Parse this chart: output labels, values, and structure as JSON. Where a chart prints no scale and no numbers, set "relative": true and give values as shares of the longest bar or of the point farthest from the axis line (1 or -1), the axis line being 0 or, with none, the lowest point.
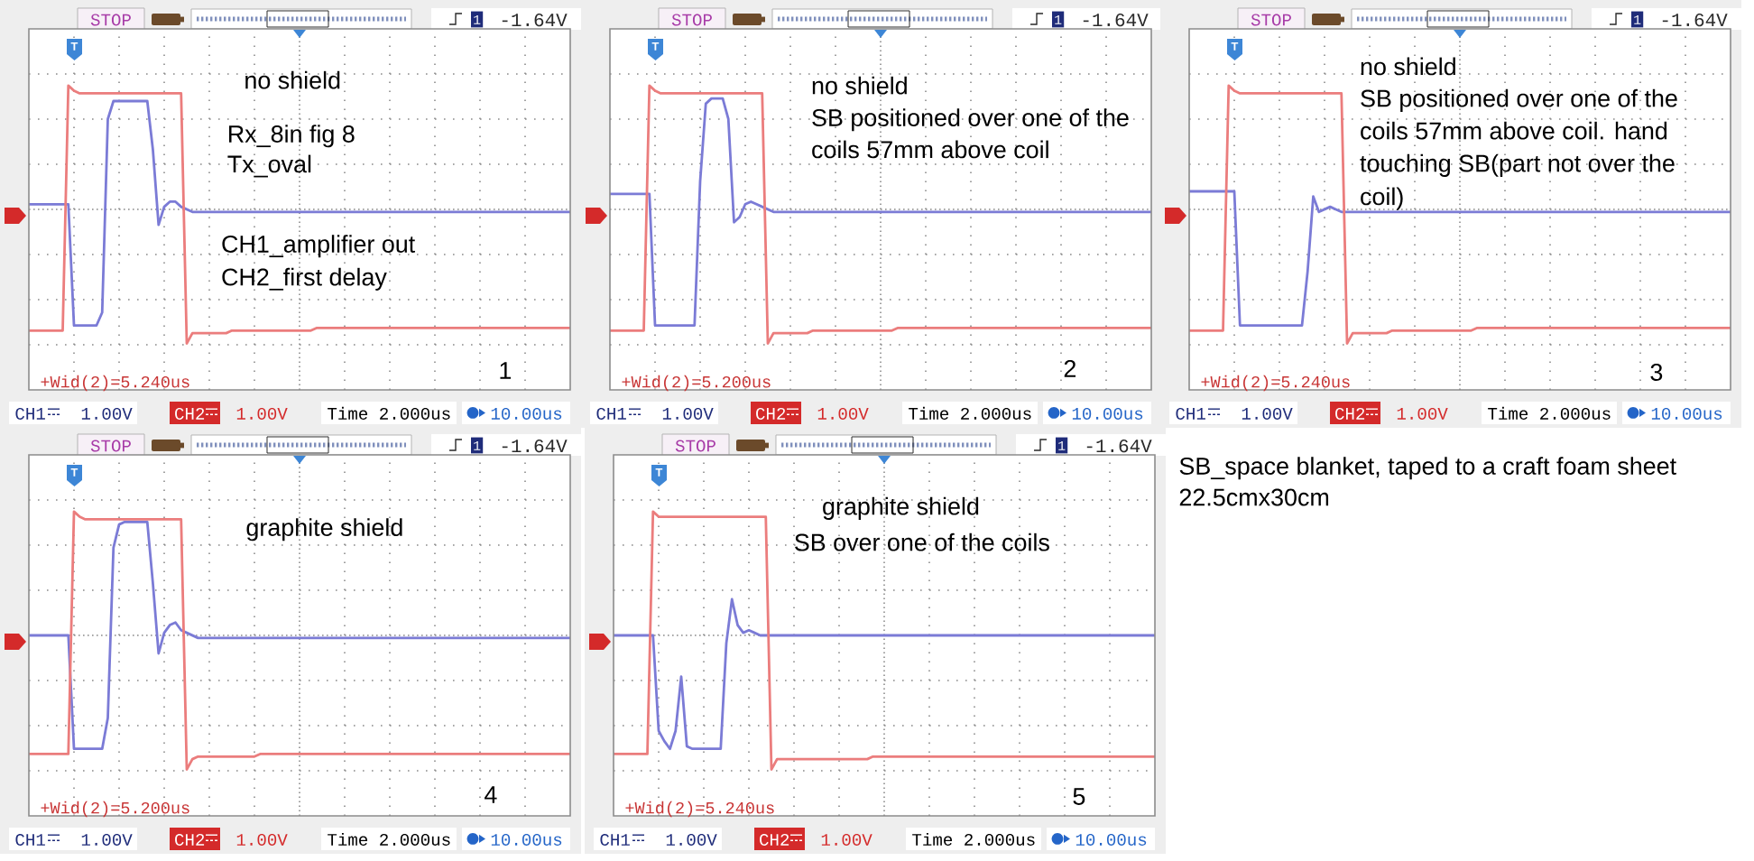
{
  "chart_data": [
    {
      "type": "line",
      "relative": true,
      "grid": true,
      "categories": [
        null,
        null,
        null,
        null,
        null,
        null,
        null,
        null,
        null,
        null,
        null,
        null,
        null,
        null,
        null,
        null,
        null,
        null,
        null,
        null,
        null,
        null,
        null,
        null,
        null,
        null,
        null,
        null,
        null,
        null,
        null,
        null,
        null,
        null,
        null,
        null,
        null,
        null,
        null,
        null,
        null,
        null,
        null,
        null,
        null,
        null,
        null,
        null,
        null,
        null,
        null,
        null,
        null,
        null,
        null,
        null,
        null,
        null,
        null,
        null,
        null,
        null,
        null,
        null,
        null,
        null,
        null,
        null,
        null,
        null,
        null,
        null,
        null,
        null,
        null,
        null,
        null,
        null,
        null,
        null,
        null,
        null,
        null,
        null,
        null,
        null,
        null,
        null,
        null,
        null,
        null,
        null,
        null,
        null,
        null,
        null,
        null
      ],
      "series": [
        {
          "color": "#7b7bd6",
          "values": [
            0.54,
            0.54,
            0.54,
            0.54,
            0.54,
            0.54,
            0.54,
            0.54,
            0.07,
            0.07,
            0.07,
            0.07,
            0.07,
            0.12,
            0.87,
            0.94,
            0.94,
            0.94,
            0.94,
            0.94,
            0.94,
            0.94,
            0.75,
            0.46,
            0.53,
            0.55,
            0.55,
            0.53,
            0.52,
            0.51,
            0.51,
            0.51,
            0.51,
            0.51,
            0.51,
            0.51,
            0.51,
            0.51,
            0.51,
            0.51,
            0.51,
            0.51,
            0.51,
            0.51,
            0.51,
            0.51,
            0.51,
            0.51,
            0.51,
            0.51,
            0.51,
            0.51,
            0.51,
            0.51,
            0.51,
            0.51,
            0.51,
            0.51,
            0.51,
            0.51,
            0.51,
            0.51,
            0.51,
            0.51,
            0.51,
            0.51,
            0.51,
            0.51,
            0.51,
            0.51,
            0.51,
            0.51,
            0.51,
            0.51,
            0.51,
            0.51,
            0.51,
            0.51,
            0.51,
            0.51,
            0.51,
            0.51,
            0.51,
            0.51,
            0.51,
            0.51,
            0.51,
            0.51,
            0.51,
            0.51,
            0.51,
            0.51,
            0.51,
            0.51,
            0.51,
            0.51,
            0.51
          ]
        },
        {
          "color": "#eb7d7d",
          "values": [
            0.05,
            0.05,
            0.05,
            0.05,
            0.05,
            0.05,
            0.05,
            1.0,
            0.98,
            0.97,
            0.97,
            0.97,
            0.97,
            0.97,
            0.97,
            0.97,
            0.97,
            0.97,
            0.97,
            0.97,
            0.97,
            0.97,
            0.97,
            0.97,
            0.97,
            0.97,
            0.97,
            0.97,
            0.0,
            0.04,
            0.04,
            0.04,
            0.04,
            0.04,
            0.04,
            0.04,
            0.05,
            0.05,
            0.05,
            0.05,
            0.05,
            0.05,
            0.05,
            0.05,
            0.05,
            0.05,
            0.05,
            0.05,
            0.05,
            0.05,
            0.05,
            0.06,
            0.06,
            0.06,
            0.06,
            0.06,
            0.06,
            0.06,
            0.06,
            0.06,
            0.06,
            0.06,
            0.06,
            0.06,
            0.06,
            0.06,
            0.06,
            0.06,
            0.06,
            0.06,
            0.06,
            0.06,
            0.06,
            0.06,
            0.06,
            0.06,
            0.06,
            0.06,
            0.06,
            0.06,
            0.06,
            0.06,
            0.06,
            0.06,
            0.06,
            0.06,
            0.06,
            0.06,
            0.06,
            0.06,
            0.06,
            0.06,
            0.06,
            0.06,
            0.06,
            0.06,
            0.06
          ]
        }
      ],
      "annotations": [
        "STOP",
        "1",
        "-1.64V",
        "T",
        "+Wid(2)=5.240us",
        "CH1",
        "1.00V",
        "CH2",
        "1.00V",
        "Time 2.000us",
        "10.00us",
        "1",
        "no shield",
        "Rx_8in fig 8",
        "Tx_oval",
        "CH1_amplifier out",
        "CH2_first delay"
      ]
    },
    {
      "type": "line",
      "relative": true,
      "grid": true,
      "categories": [
        null,
        null,
        null,
        null,
        null,
        null,
        null,
        null,
        null,
        null,
        null,
        null,
        null,
        null,
        null,
        null,
        null,
        null,
        null,
        null,
        null,
        null,
        null,
        null,
        null,
        null,
        null,
        null,
        null,
        null,
        null,
        null,
        null,
        null,
        null,
        null,
        null,
        null,
        null,
        null,
        null,
        null,
        null,
        null,
        null,
        null,
        null,
        null,
        null,
        null,
        null,
        null,
        null,
        null,
        null,
        null,
        null,
        null,
        null,
        null,
        null,
        null,
        null,
        null,
        null,
        null,
        null,
        null,
        null,
        null,
        null,
        null,
        null,
        null,
        null,
        null,
        null,
        null,
        null,
        null,
        null,
        null,
        null,
        null,
        null,
        null,
        null,
        null,
        null,
        null,
        null,
        null,
        null,
        null,
        null,
        null,
        null
      ],
      "series": [
        {
          "color": "#7b7bd6",
          "values": [
            0.58,
            0.58,
            0.58,
            0.58,
            0.58,
            0.58,
            0.58,
            0.58,
            0.07,
            0.07,
            0.07,
            0.07,
            0.07,
            0.07,
            0.07,
            0.07,
            0.63,
            0.93,
            0.95,
            0.95,
            0.95,
            0.87,
            0.47,
            0.49,
            0.54,
            0.55,
            0.54,
            0.53,
            0.52,
            0.51,
            0.51,
            0.51,
            0.51,
            0.51,
            0.51,
            0.51,
            0.51,
            0.51,
            0.51,
            0.51,
            0.51,
            0.51,
            0.51,
            0.51,
            0.51,
            0.51,
            0.51,
            0.51,
            0.51,
            0.51,
            0.51,
            0.51,
            0.51,
            0.51,
            0.51,
            0.51,
            0.51,
            0.51,
            0.51,
            0.51,
            0.51,
            0.51,
            0.51,
            0.51,
            0.51,
            0.51,
            0.51,
            0.51,
            0.51,
            0.51,
            0.51,
            0.51,
            0.51,
            0.51,
            0.51,
            0.51,
            0.51,
            0.51,
            0.51,
            0.51,
            0.51,
            0.51,
            0.51,
            0.51,
            0.51,
            0.51,
            0.51,
            0.51,
            0.51,
            0.51,
            0.51,
            0.51,
            0.51,
            0.51,
            0.51,
            0.51,
            0.51
          ]
        },
        {
          "color": "#eb7d7d",
          "values": [
            0.05,
            0.05,
            0.05,
            0.05,
            0.05,
            0.05,
            0.05,
            1.0,
            0.98,
            0.97,
            0.97,
            0.97,
            0.97,
            0.97,
            0.97,
            0.97,
            0.97,
            0.97,
            0.97,
            0.97,
            0.97,
            0.97,
            0.97,
            0.97,
            0.97,
            0.97,
            0.97,
            0.97,
            0.0,
            0.04,
            0.04,
            0.04,
            0.04,
            0.04,
            0.04,
            0.04,
            0.05,
            0.05,
            0.05,
            0.05,
            0.05,
            0.05,
            0.05,
            0.05,
            0.05,
            0.05,
            0.05,
            0.05,
            0.05,
            0.05,
            0.05,
            0.06,
            0.06,
            0.06,
            0.06,
            0.06,
            0.06,
            0.06,
            0.06,
            0.06,
            0.06,
            0.06,
            0.06,
            0.06,
            0.06,
            0.06,
            0.06,
            0.06,
            0.06,
            0.06,
            0.06,
            0.06,
            0.06,
            0.06,
            0.06,
            0.06,
            0.06,
            0.06,
            0.06,
            0.06,
            0.06,
            0.06,
            0.06,
            0.06,
            0.06,
            0.06,
            0.06,
            0.06,
            0.06,
            0.06,
            0.06,
            0.06,
            0.06,
            0.06,
            0.06,
            0.06,
            0.06
          ]
        }
      ],
      "annotations": [
        "STOP",
        "1",
        "-1.64V",
        "T",
        "+Wid(2)=5.200us",
        "CH1",
        "1.00V",
        "CH2",
        "1.00V",
        "Time 2.000us",
        "10.00us",
        "2",
        "no shield",
        "SB positioned over one of the",
        "coils 57mm above coil"
      ]
    },
    {
      "type": "line",
      "relative": true,
      "grid": true,
      "categories": [
        null,
        null,
        null,
        null,
        null,
        null,
        null,
        null,
        null,
        null,
        null,
        null,
        null,
        null,
        null,
        null,
        null,
        null,
        null,
        null,
        null,
        null,
        null,
        null,
        null,
        null,
        null,
        null,
        null,
        null,
        null,
        null,
        null,
        null,
        null,
        null,
        null,
        null,
        null,
        null,
        null,
        null,
        null,
        null,
        null,
        null,
        null,
        null,
        null,
        null,
        null,
        null,
        null,
        null,
        null,
        null,
        null,
        null,
        null,
        null,
        null,
        null,
        null,
        null,
        null,
        null,
        null,
        null,
        null,
        null,
        null,
        null,
        null,
        null,
        null,
        null,
        null,
        null,
        null,
        null,
        null,
        null,
        null,
        null,
        null,
        null,
        null,
        null,
        null,
        null,
        null,
        null,
        null,
        null,
        null,
        null,
        null
      ],
      "series": [
        {
          "color": "#7b7bd6",
          "values": [
            0.59,
            0.59,
            0.59,
            0.59,
            0.59,
            0.59,
            0.59,
            0.59,
            0.59,
            0.07,
            0.07,
            0.07,
            0.07,
            0.07,
            0.07,
            0.07,
            0.07,
            0.07,
            0.07,
            0.07,
            0.07,
            0.28,
            0.57,
            0.51,
            0.52,
            0.53,
            0.52,
            0.51,
            0.51,
            0.51,
            0.51,
            0.51,
            0.51,
            0.51,
            0.51,
            0.51,
            0.51,
            0.51,
            0.51,
            0.51,
            0.51,
            0.51,
            0.51,
            0.51,
            0.51,
            0.51,
            0.51,
            0.51,
            0.51,
            0.51,
            0.51,
            0.51,
            0.51,
            0.51,
            0.51,
            0.51,
            0.51,
            0.51,
            0.51,
            0.51,
            0.51,
            0.51,
            0.51,
            0.51,
            0.51,
            0.51,
            0.51,
            0.51,
            0.51,
            0.51,
            0.51,
            0.51,
            0.51,
            0.51,
            0.51,
            0.51,
            0.51,
            0.51,
            0.51,
            0.51,
            0.51,
            0.51,
            0.51,
            0.51,
            0.51,
            0.51,
            0.51,
            0.51,
            0.51,
            0.51,
            0.51,
            0.51,
            0.51,
            0.51,
            0.51,
            0.51,
            0.51
          ]
        },
        {
          "color": "#eb7d7d",
          "values": [
            0.05,
            0.05,
            0.05,
            0.05,
            0.05,
            0.05,
            0.05,
            1.0,
            0.98,
            0.97,
            0.97,
            0.97,
            0.97,
            0.97,
            0.97,
            0.97,
            0.97,
            0.97,
            0.97,
            0.97,
            0.97,
            0.97,
            0.97,
            0.97,
            0.97,
            0.97,
            0.97,
            0.97,
            0.0,
            0.04,
            0.04,
            0.04,
            0.04,
            0.04,
            0.04,
            0.04,
            0.05,
            0.05,
            0.05,
            0.05,
            0.05,
            0.05,
            0.05,
            0.05,
            0.05,
            0.05,
            0.05,
            0.05,
            0.05,
            0.05,
            0.05,
            0.06,
            0.06,
            0.06,
            0.06,
            0.06,
            0.06,
            0.06,
            0.06,
            0.06,
            0.06,
            0.06,
            0.06,
            0.06,
            0.06,
            0.06,
            0.06,
            0.06,
            0.06,
            0.06,
            0.06,
            0.06,
            0.06,
            0.06,
            0.06,
            0.06,
            0.06,
            0.06,
            0.06,
            0.06,
            0.06,
            0.06,
            0.06,
            0.06,
            0.06,
            0.06,
            0.06,
            0.06,
            0.06,
            0.06,
            0.06,
            0.06,
            0.06,
            0.06,
            0.06,
            0.06,
            0.06
          ]
        }
      ],
      "annotations": [
        "STOP",
        "1",
        "-1.64V",
        "T",
        "+Wid(2)=5.240us",
        "CH1",
        "1.00V",
        "CH2",
        "1.00V",
        "Time 2.000us",
        "10.00us",
        "3",
        "no shield",
        "SB positioned over one of the",
        "coils 57mm above coil. hand",
        "touching SB(part not over the",
        "coil)"
      ]
    },
    {
      "type": "line",
      "relative": true,
      "grid": true,
      "categories": [
        null,
        null,
        null,
        null,
        null,
        null,
        null,
        null,
        null,
        null,
        null,
        null,
        null,
        null,
        null,
        null,
        null,
        null,
        null,
        null,
        null,
        null,
        null,
        null,
        null,
        null,
        null,
        null,
        null,
        null,
        null,
        null,
        null,
        null,
        null,
        null,
        null,
        null,
        null,
        null,
        null,
        null,
        null,
        null,
        null,
        null,
        null,
        null,
        null,
        null,
        null,
        null,
        null,
        null,
        null,
        null,
        null,
        null,
        null,
        null,
        null,
        null,
        null,
        null,
        null,
        null,
        null,
        null,
        null,
        null,
        null,
        null,
        null,
        null,
        null,
        null,
        null,
        null,
        null,
        null,
        null,
        null,
        null,
        null,
        null,
        null,
        null,
        null,
        null,
        null,
        null,
        null,
        null,
        null,
        null,
        null,
        null
      ],
      "series": [
        {
          "color": "#7b7bd6",
          "values": [
            0.52,
            0.52,
            0.52,
            0.52,
            0.52,
            0.52,
            0.52,
            0.52,
            0.08,
            0.08,
            0.08,
            0.08,
            0.08,
            0.08,
            0.2,
            0.86,
            0.95,
            0.96,
            0.96,
            0.96,
            0.96,
            0.96,
            0.72,
            0.45,
            0.53,
            0.56,
            0.57,
            0.54,
            0.53,
            0.52,
            0.51,
            0.51,
            0.51,
            0.51,
            0.51,
            0.51,
            0.51,
            0.51,
            0.51,
            0.51,
            0.51,
            0.51,
            0.51,
            0.51,
            0.51,
            0.51,
            0.51,
            0.51,
            0.51,
            0.51,
            0.51,
            0.51,
            0.51,
            0.51,
            0.51,
            0.51,
            0.51,
            0.51,
            0.51,
            0.51,
            0.51,
            0.51,
            0.51,
            0.51,
            0.51,
            0.51,
            0.51,
            0.51,
            0.51,
            0.51,
            0.51,
            0.51,
            0.51,
            0.51,
            0.51,
            0.51,
            0.51,
            0.51,
            0.51,
            0.51,
            0.51,
            0.51,
            0.51,
            0.51,
            0.51,
            0.51,
            0.51,
            0.51,
            0.51,
            0.51,
            0.51,
            0.51,
            0.51,
            0.51,
            0.51,
            0.51,
            0.51
          ]
        },
        {
          "color": "#eb7d7d",
          "values": [
            0.06,
            0.06,
            0.06,
            0.06,
            0.06,
            0.06,
            0.06,
            0.06,
            1.0,
            0.98,
            0.97,
            0.97,
            0.97,
            0.97,
            0.97,
            0.97,
            0.97,
            0.97,
            0.97,
            0.97,
            0.97,
            0.97,
            0.97,
            0.97,
            0.97,
            0.97,
            0.97,
            0.97,
            0.0,
            0.04,
            0.05,
            0.05,
            0.05,
            0.05,
            0.05,
            0.05,
            0.05,
            0.05,
            0.05,
            0.05,
            0.05,
            0.06,
            0.06,
            0.06,
            0.06,
            0.06,
            0.06,
            0.06,
            0.06,
            0.06,
            0.06,
            0.06,
            0.06,
            0.06,
            0.06,
            0.06,
            0.06,
            0.06,
            0.06,
            0.06,
            0.06,
            0.06,
            0.06,
            0.06,
            0.06,
            0.06,
            0.06,
            0.06,
            0.06,
            0.06,
            0.06,
            0.06,
            0.06,
            0.06,
            0.06,
            0.06,
            0.06,
            0.06,
            0.06,
            0.06,
            0.06,
            0.06,
            0.06,
            0.06,
            0.06,
            0.06,
            0.06,
            0.06,
            0.06,
            0.06,
            0.06,
            0.06,
            0.06,
            0.06,
            0.06,
            0.06,
            0.06
          ]
        }
      ],
      "annotations": [
        "STOP",
        "1",
        "-1.64V",
        "T",
        "+Wid(2)=5.200us",
        "CH1",
        "1.00V",
        "CH2",
        "1.00V",
        "Time 2.000us",
        "10.00us",
        "4",
        "graphite shield"
      ]
    },
    {
      "type": "line",
      "relative": true,
      "grid": true,
      "categories": [
        null,
        null,
        null,
        null,
        null,
        null,
        null,
        null,
        null,
        null,
        null,
        null,
        null,
        null,
        null,
        null,
        null,
        null,
        null,
        null,
        null,
        null,
        null,
        null,
        null,
        null,
        null,
        null,
        null,
        null,
        null,
        null,
        null,
        null,
        null,
        null,
        null,
        null,
        null,
        null,
        null,
        null,
        null,
        null,
        null,
        null,
        null,
        null,
        null,
        null,
        null,
        null,
        null,
        null,
        null,
        null,
        null,
        null,
        null,
        null,
        null,
        null,
        null,
        null,
        null,
        null,
        null,
        null,
        null,
        null,
        null,
        null,
        null,
        null,
        null,
        null,
        null,
        null,
        null,
        null,
        null,
        null,
        null,
        null,
        null,
        null,
        null,
        null,
        null,
        null,
        null,
        null,
        null,
        null,
        null,
        null,
        null
      ],
      "series": [
        {
          "color": "#7b7bd6",
          "values": [
            0.52,
            0.52,
            0.52,
            0.52,
            0.52,
            0.52,
            0.52,
            0.52,
            0.15,
            0.11,
            0.08,
            0.15,
            0.36,
            0.09,
            0.08,
            0.08,
            0.08,
            0.08,
            0.08,
            0.08,
            0.49,
            0.66,
            0.56,
            0.53,
            0.54,
            0.53,
            0.52,
            0.52,
            0.52,
            0.52,
            0.52,
            0.52,
            0.52,
            0.52,
            0.52,
            0.52,
            0.52,
            0.52,
            0.52,
            0.52,
            0.52,
            0.52,
            0.52,
            0.52,
            0.52,
            0.52,
            0.52,
            0.52,
            0.52,
            0.52,
            0.52,
            0.52,
            0.52,
            0.52,
            0.52,
            0.52,
            0.52,
            0.52,
            0.52,
            0.52,
            0.52,
            0.52,
            0.52,
            0.52,
            0.52,
            0.52,
            0.52,
            0.52,
            0.52,
            0.52,
            0.52,
            0.52,
            0.52,
            0.52,
            0.52,
            0.52,
            0.52,
            0.52,
            0.52,
            0.52,
            0.52,
            0.52,
            0.52,
            0.52,
            0.52,
            0.52,
            0.52,
            0.52,
            0.52,
            0.52,
            0.52,
            0.52,
            0.52,
            0.52,
            0.52,
            0.52,
            0.52
          ]
        },
        {
          "color": "#eb7d7d",
          "values": [
            0.06,
            0.06,
            0.06,
            0.06,
            0.06,
            0.06,
            0.06,
            1.0,
            0.98,
            0.98,
            0.98,
            0.98,
            0.98,
            0.98,
            0.98,
            0.98,
            0.98,
            0.98,
            0.98,
            0.98,
            0.98,
            0.98,
            0.98,
            0.98,
            0.98,
            0.98,
            0.98,
            0.98,
            0.0,
            0.04,
            0.04,
            0.04,
            0.04,
            0.04,
            0.04,
            0.04,
            0.04,
            0.04,
            0.04,
            0.04,
            0.04,
            0.04,
            0.04,
            0.04,
            0.04,
            0.04,
            0.05,
            0.05,
            0.05,
            0.05,
            0.05,
            0.05,
            0.05,
            0.05,
            0.05,
            0.05,
            0.05,
            0.05,
            0.05,
            0.05,
            0.05,
            0.05,
            0.05,
            0.05,
            0.05,
            0.05,
            0.05,
            0.05,
            0.05,
            0.05,
            0.05,
            0.05,
            0.05,
            0.05,
            0.05,
            0.05,
            0.05,
            0.05,
            0.05,
            0.05,
            0.05,
            0.05,
            0.05,
            0.05,
            0.05,
            0.05,
            0.05,
            0.05,
            0.05,
            0.05,
            0.05,
            0.05,
            0.05,
            0.05,
            0.05,
            0.05,
            0.05
          ]
        }
      ],
      "annotations": [
        "STOP",
        "1",
        "-1.64V",
        "T",
        "+Wid(2)=5.240us",
        "CH1",
        "1.00V",
        "CH2",
        "1.00V",
        "Time 2.000us",
        "10.00us",
        "5",
        "graphite shield",
        "SB over one of the coils"
      ]
    },
    {
      "type": "other",
      "annotations": [
        "SB_space blanket, taped to a craft foam sheet",
        "22.5cmx30cm"
      ]
    }
  ]
}
